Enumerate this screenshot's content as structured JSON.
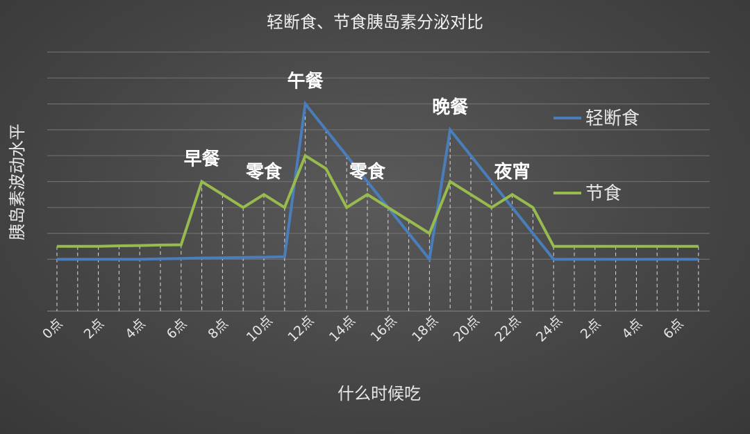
{
  "chart_data": {
    "type": "line",
    "title": "轻断食、节食胰岛素分泌对比",
    "xlabel": "什么时候吃",
    "ylabel": "胰岛素波动水平",
    "x": [
      0,
      1,
      2,
      3,
      4,
      5,
      6,
      7,
      8,
      9,
      10,
      11,
      12,
      13,
      14,
      15,
      16,
      17,
      18,
      19,
      20,
      21,
      22,
      23,
      24,
      25,
      26,
      27,
      28,
      29,
      30,
      31
    ],
    "x_tick_labels": [
      "0点",
      "2点",
      "4点",
      "6点",
      "8点",
      "10点",
      "12点",
      "14点",
      "16点",
      "18点",
      "20点",
      "22点",
      "24点",
      "2点",
      "4点",
      "6点"
    ],
    "ylim": [
      -2,
      8
    ],
    "y_gridlines": [
      0,
      1,
      2,
      3,
      4,
      5,
      6,
      7,
      8
    ],
    "legend_position": "right",
    "series": [
      {
        "name": "轻断食",
        "color": "#4a7ebb",
        "values": [
          0,
          0,
          0,
          0,
          0,
          0.02,
          0.03,
          0.05,
          0.06,
          0.07,
          0.08,
          0.1,
          6,
          5,
          4,
          3,
          2,
          1,
          0,
          5,
          4,
          3,
          2,
          1,
          0,
          0,
          0,
          0,
          0,
          0,
          0,
          0
        ]
      },
      {
        "name": "节食",
        "color": "#98bb4e",
        "values": [
          0.5,
          0.5,
          0.5,
          0.52,
          0.53,
          0.55,
          0.56,
          3,
          2.5,
          2,
          2.5,
          2,
          4,
          3.5,
          2,
          2.5,
          2,
          1.5,
          1,
          3,
          2.5,
          2,
          2.5,
          2,
          0.5,
          0.5,
          0.5,
          0.5,
          0.5,
          0.5,
          0.5,
          0.5
        ]
      }
    ],
    "annotations": [
      {
        "text": "早餐",
        "x": 7,
        "y": 3
      },
      {
        "text": "零食",
        "x": 10,
        "y": 2.5
      },
      {
        "text": "午餐",
        "x": 12,
        "y": 6
      },
      {
        "text": "零食",
        "x": 15,
        "y": 2.5
      },
      {
        "text": "晚餐",
        "x": 19,
        "y": 5
      },
      {
        "text": "夜宵",
        "x": 22,
        "y": 2.5
      }
    ]
  }
}
